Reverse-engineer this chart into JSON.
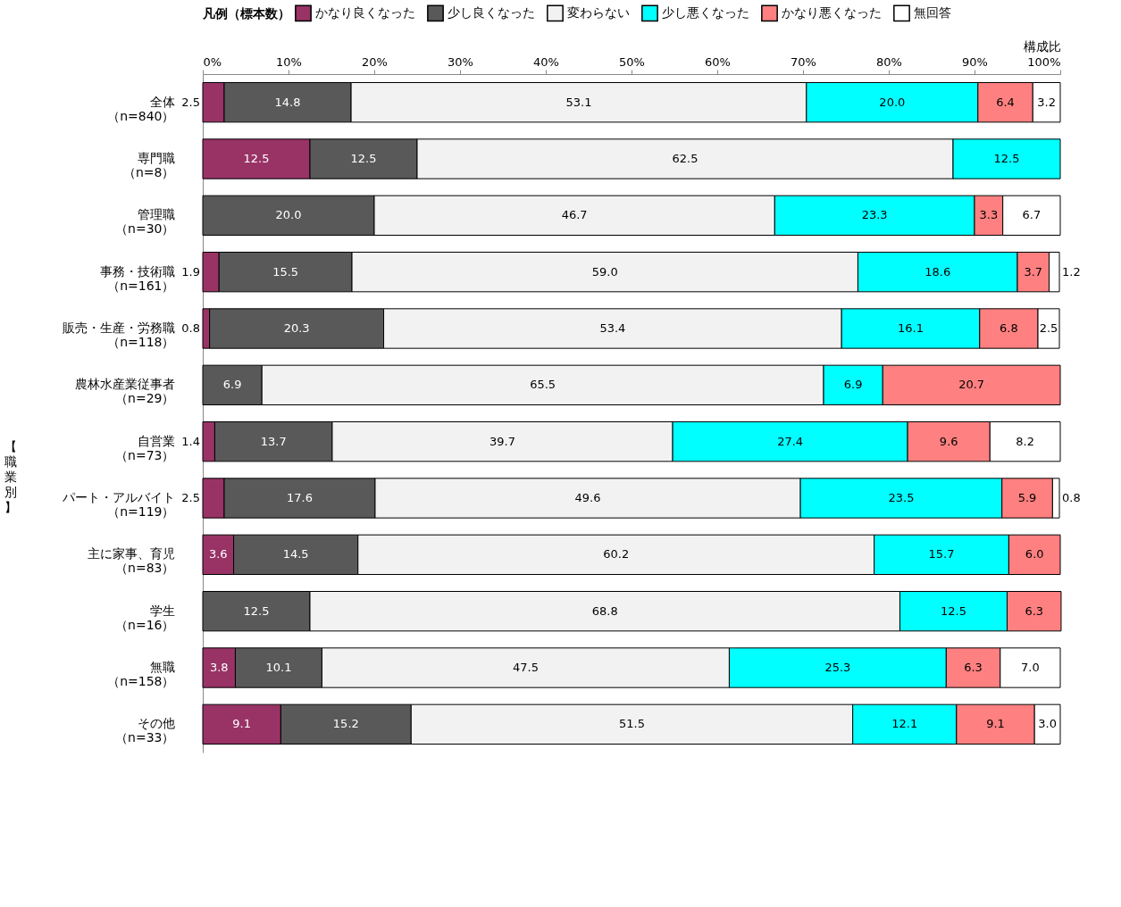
{
  "chart_data": {
    "type": "bar",
    "orientation": "horizontal",
    "stacked": true,
    "grid": false,
    "legend": "top",
    "legend_title": "凡例（標本数）",
    "xlabel": "構成比",
    "annotations": [
      "【職業別】"
    ],
    "categories": [
      "全体（n=840）",
      "専門職（n=8）",
      "管理職（n=30）",
      "事務・技術職（n=161）",
      "販売・生産・労務職（n=118）",
      "農林水産業従事者（n=29）",
      "自営業（n=73）",
      "パート・アルバイト（n=119）",
      "主に家事、育児（n=83）",
      "学生（n=16）",
      "無職（n=158）",
      "その他（n=33）"
    ],
    "xlim": [
      0,
      100
    ],
    "xticks": [
      {
        "value": 0,
        "label": "0%"
      },
      {
        "value": 10,
        "label": "10%"
      },
      {
        "value": 20,
        "label": "20%"
      },
      {
        "value": 30,
        "label": "30%"
      },
      {
        "value": 40,
        "label": "40%"
      },
      {
        "value": 50,
        "label": "50%"
      },
      {
        "value": 60,
        "label": "60%"
      },
      {
        "value": 70,
        "label": "70%"
      },
      {
        "value": 80,
        "label": "80%"
      },
      {
        "value": 90,
        "label": "90%"
      },
      {
        "value": 100,
        "label": "100%"
      }
    ],
    "series": [
      {
        "name": "かなり良くなった",
        "color": "#993366",
        "values": [
          2.5,
          12.5,
          null,
          1.9,
          0.8,
          null,
          1.4,
          2.5,
          3.6,
          null,
          3.8,
          9.1
        ],
        "value_labels": [
          "2.5",
          "12.5",
          null,
          "1.9",
          "0.8",
          null,
          "1.4",
          "2.5",
          "3.6",
          null,
          "3.8",
          "9.1"
        ]
      },
      {
        "name": "少し良くなった",
        "color": "#595959",
        "values": [
          14.8,
          12.5,
          20.0,
          15.5,
          20.3,
          6.9,
          13.7,
          17.6,
          14.5,
          12.5,
          10.1,
          15.2
        ],
        "value_labels": [
          "14.8",
          "12.5",
          "20.0",
          "15.5",
          "20.3",
          "6.9",
          "13.7",
          "17.6",
          "14.5",
          "12.5",
          "10.1",
          "15.2"
        ]
      },
      {
        "name": "変わらない",
        "color": "#f2f2f2",
        "values": [
          53.1,
          62.5,
          46.7,
          59.0,
          53.4,
          65.5,
          39.7,
          49.6,
          60.2,
          68.8,
          47.5,
          51.5
        ],
        "value_labels": [
          "53.1",
          "62.5",
          "46.7",
          "59.0",
          "53.4",
          "65.5",
          "39.7",
          "49.6",
          "60.2",
          "68.8",
          "47.5",
          "51.5"
        ]
      },
      {
        "name": "少し悪くなった",
        "color": "#00ffff",
        "values": [
          20.0,
          12.5,
          23.3,
          18.6,
          16.1,
          6.9,
          27.4,
          23.5,
          15.7,
          12.5,
          25.3,
          12.1
        ],
        "value_labels": [
          "20.0",
          "12.5",
          "23.3",
          "18.6",
          "16.1",
          "6.9",
          "27.4",
          "23.5",
          "15.7",
          "12.5",
          "25.3",
          "12.1"
        ]
      },
      {
        "name": "かなり悪くなった",
        "color": "#ff8080",
        "values": [
          6.4,
          null,
          3.3,
          3.7,
          6.8,
          20.7,
          9.6,
          5.9,
          6.0,
          6.3,
          6.3,
          9.1
        ],
        "value_labels": [
          "6.4",
          null,
          "3.3",
          "3.7",
          "6.8",
          "20.7",
          "9.6",
          "5.9",
          "6.0",
          "6.3",
          "6.3",
          "9.1"
        ]
      },
      {
        "name": "無回答",
        "color": "#ffffff",
        "values": [
          3.2,
          null,
          6.7,
          1.2,
          2.5,
          null,
          8.2,
          0.8,
          null,
          null,
          7.0,
          3.0
        ],
        "value_labels": [
          "3.2",
          null,
          "6.7",
          "1.2",
          "2.5",
          null,
          "8.2",
          "0.8",
          null,
          null,
          "7.0",
          "3.0"
        ]
      }
    ]
  }
}
